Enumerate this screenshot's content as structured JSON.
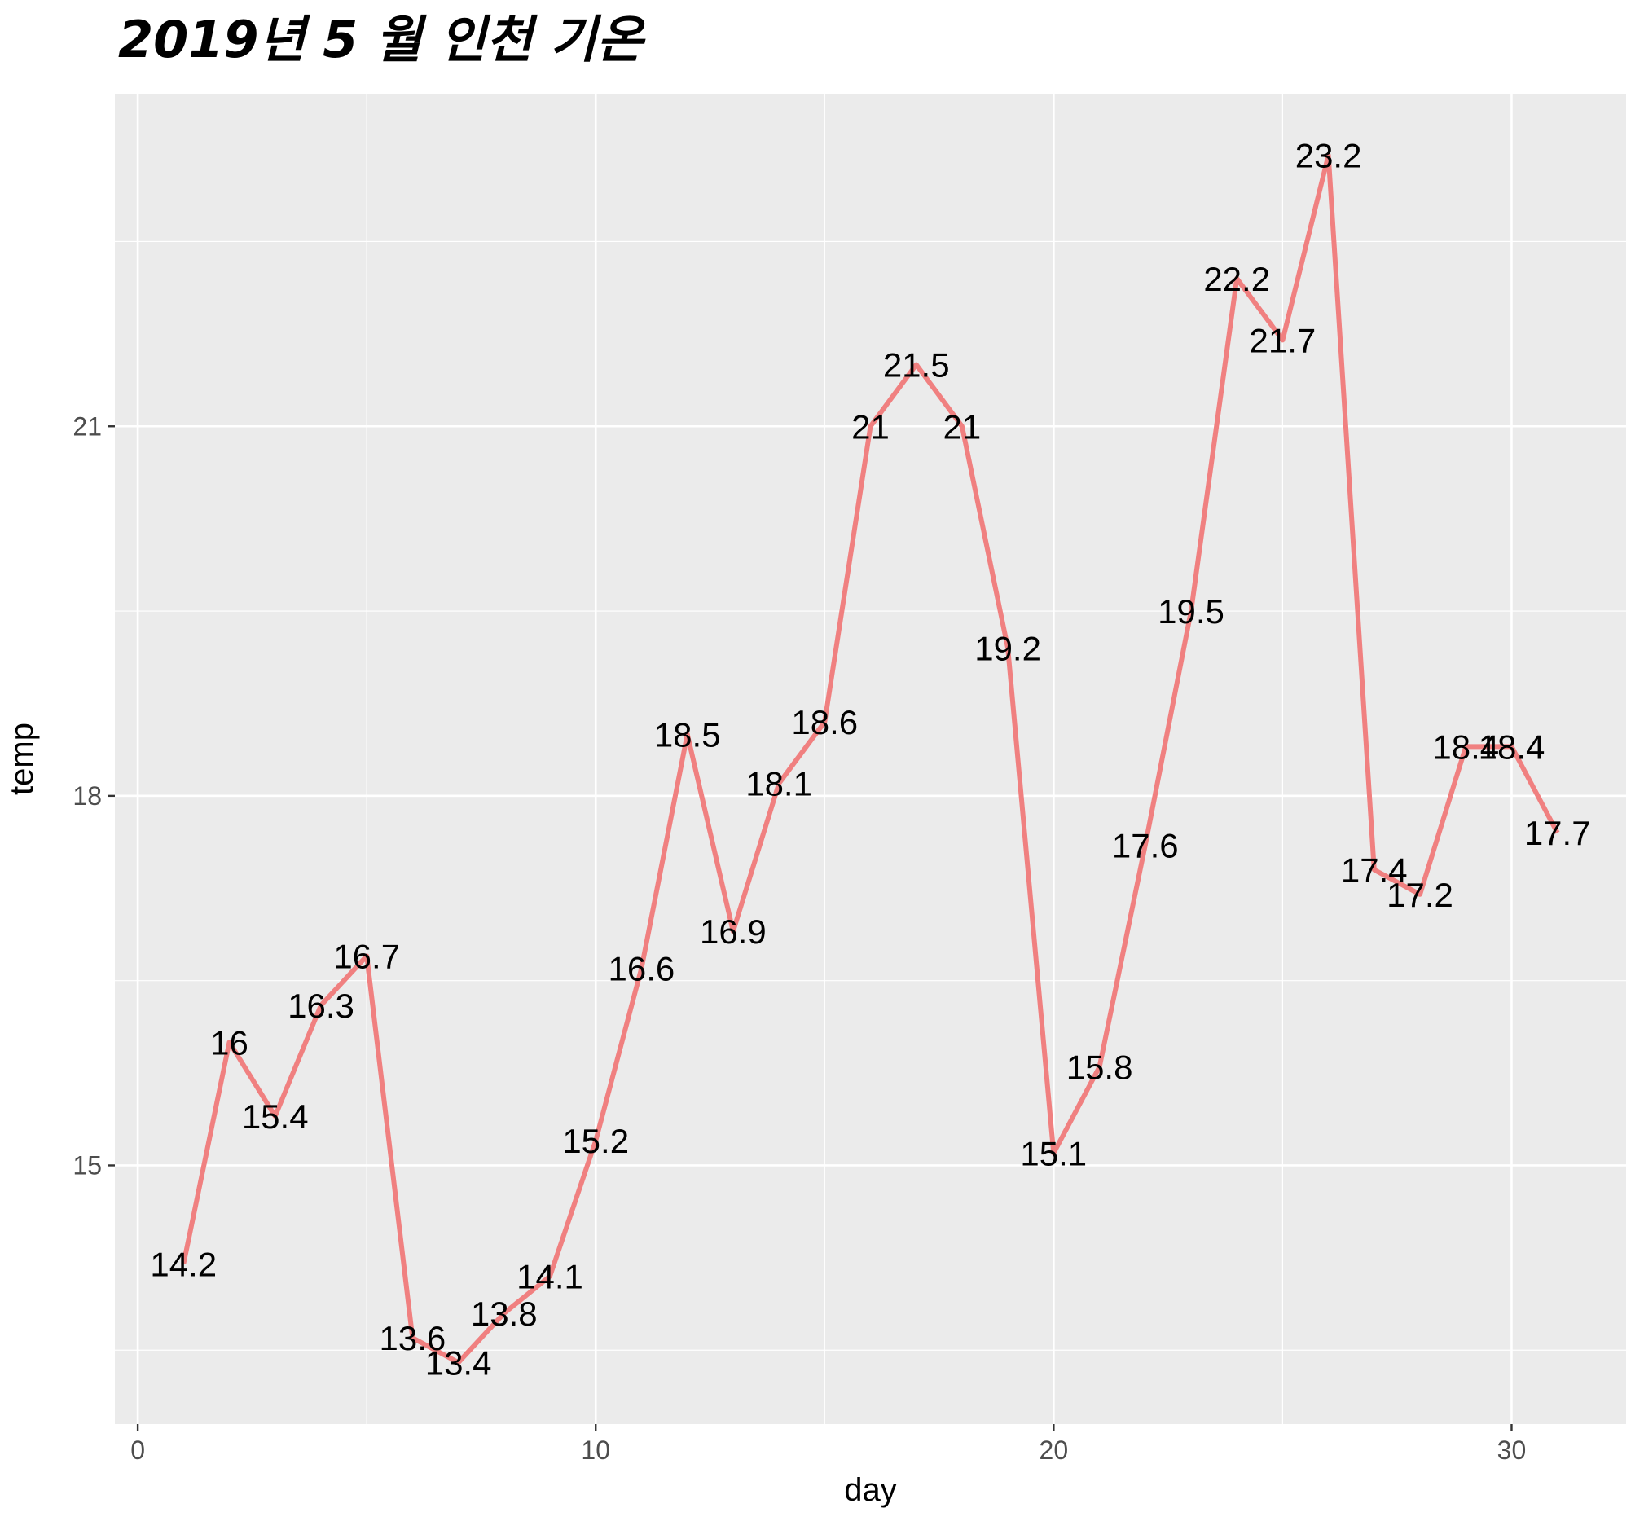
{
  "chart_data": {
    "type": "line",
    "title": "2019년 5 월 인천 기온",
    "xlabel": "day",
    "ylabel": "temp",
    "xlim": [
      -0.5,
      32.5
    ],
    "ylim": [
      12.9,
      23.7
    ],
    "x_ticks": [
      0,
      10,
      20,
      30
    ],
    "y_ticks": [
      15,
      18,
      21
    ],
    "grid": true,
    "legend": "none",
    "line_color": "#F08080",
    "panel_color": "#EBEBEB",
    "x": [
      1,
      2,
      3,
      4,
      5,
      6,
      7,
      8,
      9,
      10,
      11,
      12,
      13,
      14,
      15,
      16,
      17,
      18,
      19,
      20,
      21,
      22,
      23,
      24,
      25,
      26,
      27,
      28,
      29,
      30,
      31
    ],
    "values": [
      14.2,
      16,
      15.4,
      16.3,
      16.7,
      13.6,
      13.4,
      13.8,
      14.1,
      15.2,
      16.6,
      18.5,
      16.9,
      18.1,
      18.6,
      21,
      21.5,
      21,
      19.2,
      15.1,
      15.8,
      17.6,
      19.5,
      22.2,
      21.7,
      23.2,
      17.4,
      17.2,
      18.4,
      18.4,
      17.7
    ],
    "data_labels": [
      "14.2",
      "16",
      "15.4",
      "16.3",
      "16.7",
      "13.6",
      "13.4",
      "13.8",
      "14.1",
      "15.2",
      "16.6",
      "18.5",
      "16.9",
      "18.1",
      "18.6",
      "21",
      "21.5",
      "21",
      "19.2",
      "15.1",
      "15.8",
      "17.6",
      "19.5",
      "22.2",
      "21.7",
      "23.2",
      "17.4",
      "17.2",
      "18.4",
      "18.4",
      "17.7"
    ]
  }
}
